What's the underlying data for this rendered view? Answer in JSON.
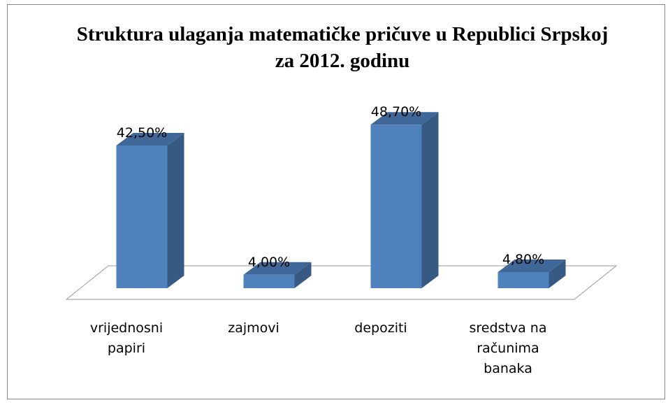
{
  "chart_data": {
    "type": "bar3d",
    "title": "Struktura ulaganja matematičke pričuve u Republici Srpskoj za 2012. godinu",
    "categories": [
      "vrijednosni papiri",
      "zajmovi",
      "depoziti",
      "sredstva na računima banaka"
    ],
    "values": [
      42.5,
      4.0,
      48.7,
      4.8
    ],
    "value_labels": [
      "42,50%",
      "4,00%",
      "48,70%",
      "4,80%"
    ],
    "color": "#4f81bd"
  }
}
